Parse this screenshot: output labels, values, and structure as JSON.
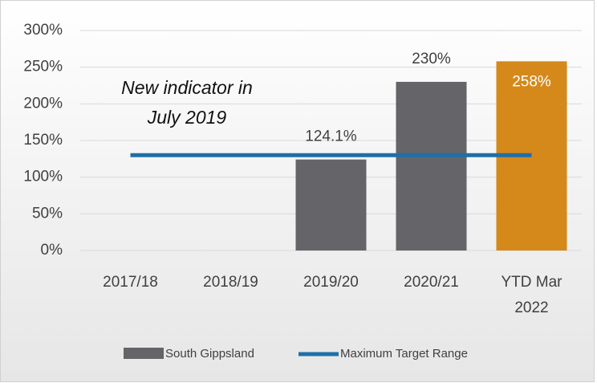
{
  "chart_data": {
    "type": "bar",
    "categories": [
      "2017/18",
      "2018/19",
      "2019/20",
      "2020/21",
      "YTD Mar 2022"
    ],
    "series": [
      {
        "name": "South Gippsland",
        "type": "bar",
        "color": "#646469",
        "colors": [
          "#646469",
          "#646469",
          "#646469",
          "#646469",
          "#d4891a"
        ],
        "values": [
          null,
          null,
          124.1,
          230,
          258
        ],
        "value_labels": [
          null,
          null,
          "124.1%",
          "230%",
          "258%"
        ]
      },
      {
        "name": "Maximum Target Range",
        "type": "line",
        "color": "#1f6fa8",
        "values": [
          130,
          130,
          130,
          130,
          130
        ]
      }
    ],
    "annotation": [
      "New indicator in",
      "July 2019"
    ],
    "ylim": [
      0,
      300
    ],
    "yticks": [
      {
        "value": 0,
        "label": "0%"
      },
      {
        "value": 50,
        "label": "50%"
      },
      {
        "value": 100,
        "label": "100%"
      },
      {
        "value": 150,
        "label": "150%"
      },
      {
        "value": 200,
        "label": "200%"
      },
      {
        "value": 250,
        "label": "250%"
      },
      {
        "value": 300,
        "label": "300%"
      }
    ],
    "grid": true,
    "legend": "bottom"
  }
}
